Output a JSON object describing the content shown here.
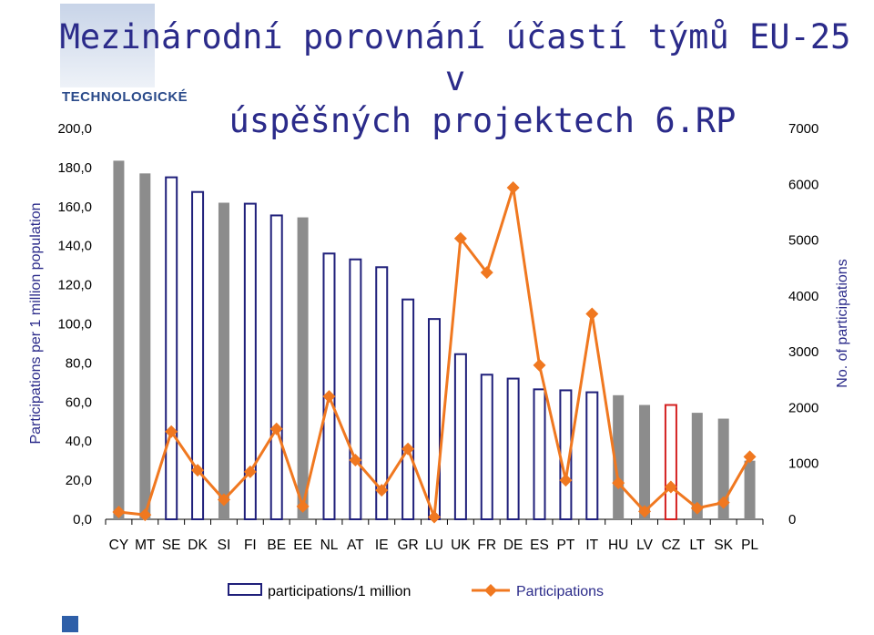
{
  "slide": {
    "title_line1": "Mezinárodní porovnání  účastí týmů EU-25 v",
    "title_line2": "úspěšných projektech 6.RP",
    "logo_text": "TECHNOLOGICKÉ"
  },
  "chart_data": {
    "type": "bar",
    "categories": [
      "CY",
      "MT",
      "SE",
      "DK",
      "SI",
      "FI",
      "BE",
      "EE",
      "NL",
      "AT",
      "IE",
      "GR",
      "LU",
      "UK",
      "FR",
      "DE",
      "ES",
      "PT",
      "IT",
      "HU",
      "LV",
      "CZ",
      "LT",
      "SK",
      "PL"
    ],
    "ylabel": "Participations per 1 million population",
    "y2label": "No. of participations",
    "ylim": [
      0,
      200
    ],
    "y2lim": [
      0,
      7000
    ],
    "yticks": [
      "0,0",
      "20,0",
      "40,0",
      "60,0",
      "80,0",
      "100,0",
      "120,0",
      "140,0",
      "160,0",
      "180,0",
      "200,0"
    ],
    "y2ticks": [
      "0",
      "1000",
      "2000",
      "3000",
      "4000",
      "5000",
      "6000",
      "7000"
    ],
    "series": [
      {
        "name": "participations/1 million",
        "type": "bar",
        "values": [
          183.5,
          177,
          175,
          167.5,
          162,
          161.5,
          155.5,
          154.5,
          136,
          133,
          129,
          112.5,
          102.5,
          84.5,
          74,
          72,
          66.5,
          66,
          65,
          63.5,
          58.5,
          58.5,
          54.5,
          51.5,
          30
        ],
        "styles": [
          "gray",
          "gray",
          "outline",
          "outline",
          "gray",
          "outline",
          "outline",
          "gray",
          "outline",
          "outline",
          "outline",
          "outline",
          "outline",
          "outline",
          "outline",
          "outline",
          "outline",
          "outline",
          "outline",
          "gray",
          "gray",
          "red",
          "gray",
          "gray",
          "gray"
        ]
      },
      {
        "name": "Participations",
        "type": "line",
        "values": [
          130,
          80,
          1570,
          880,
          350,
          850,
          1620,
          230,
          2200,
          1060,
          520,
          1260,
          40,
          5030,
          4420,
          5940,
          2760,
          700,
          3680,
          650,
          140,
          580,
          200,
          300,
          1120
        ]
      }
    ],
    "colors": {
      "bar_gray": "#8c8c8c",
      "bar_outline": "#1f1f7a",
      "bar_highlight": "#d42020",
      "line": "#f07820",
      "title": "#2b2b8a"
    },
    "legend_position": "bottom"
  }
}
